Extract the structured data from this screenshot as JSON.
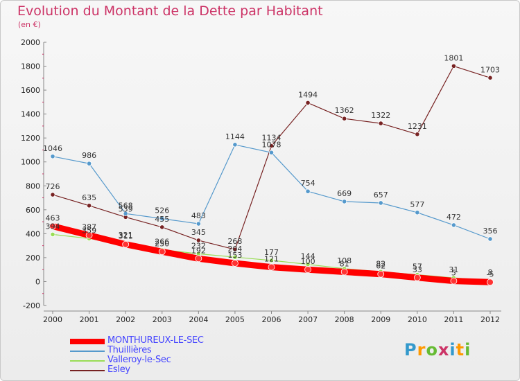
{
  "title": "Evolution du Montant de la Dette par Habitant",
  "unit": "(en €)",
  "logo_text": "Proxiti",
  "chart_data": {
    "type": "line",
    "title": "Evolution du Montant de la Dette par Habitant",
    "ylabel": "(en €)",
    "xlabel": "",
    "ylim": [
      -200,
      2000
    ],
    "yticks": [
      -200,
      0,
      200,
      400,
      600,
      800,
      1000,
      1200,
      1400,
      1600,
      1800,
      2000
    ],
    "grid": false,
    "legend_position": "bottom-left",
    "categories": [
      "2000",
      "2001",
      "2002",
      "2003",
      "2004",
      "2005",
      "2006",
      "2007",
      "2008",
      "2009",
      "2010",
      "2011",
      "2012"
    ],
    "series": [
      {
        "name": "MONTHUREUX-LE-SEC",
        "color": "#ff0000",
        "values": [
          463,
          387,
          311,
          250,
          192,
          153,
          121,
          100,
          81,
          62,
          33,
          5,
          -5
        ],
        "labels": [
          "463",
          "387",
          "311",
          "250",
          "192",
          "153",
          "121",
          "100",
          "81",
          "62",
          "33",
          "5",
          "-5"
        ],
        "show_labels": [
          true,
          true,
          true,
          true,
          true,
          true,
          true,
          true,
          true,
          true,
          true,
          true,
          true
        ]
      },
      {
        "name": "Thuillières",
        "color": "#5599cc",
        "values": [
          1046,
          986,
          568,
          526,
          483,
          1144,
          1078,
          754,
          669,
          657,
          577,
          472,
          356
        ],
        "labels": [
          "1046",
          "986",
          "568",
          "526",
          "483",
          "1144",
          "1078",
          "754",
          "669",
          "657",
          "577",
          "472",
          "356"
        ],
        "show_labels": [
          true,
          true,
          true,
          true,
          true,
          true,
          true,
          true,
          true,
          true,
          true,
          true,
          true
        ]
      },
      {
        "name": "Valleroy-le-Sec",
        "color": "#99dd55",
        "values": [
          394,
          359,
          321,
          266,
          232,
          204,
          177,
          144,
          108,
          82,
          57,
          31,
          8
        ],
        "labels": [
          "394",
          "359",
          "321",
          "266",
          "232",
          "204",
          "177",
          "144",
          "108",
          "82",
          "57",
          "31",
          "8"
        ],
        "show_labels": [
          true,
          true,
          true,
          true,
          true,
          true,
          true,
          true,
          true,
          true,
          true,
          true,
          true
        ]
      },
      {
        "name": "Esley",
        "color": "#772222",
        "values": [
          726,
          635,
          539,
          455,
          345,
          268,
          1134,
          1494,
          1362,
          1322,
          1231,
          1801,
          1703
        ],
        "labels": [
          "726",
          "635",
          "539",
          "455",
          "345",
          "268",
          "1134",
          "1494",
          "1362",
          "1322",
          "1231",
          "1801",
          "1703"
        ],
        "show_labels": [
          true,
          true,
          true,
          true,
          true,
          true,
          true,
          true,
          true,
          true,
          true,
          true,
          true
        ]
      }
    ]
  }
}
